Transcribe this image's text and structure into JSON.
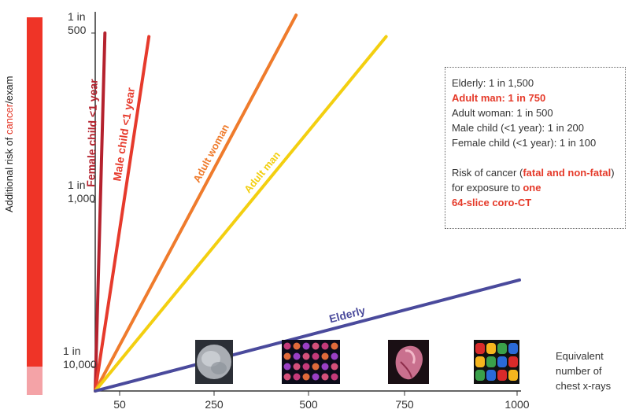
{
  "chart_data": {
    "type": "line",
    "ylabel_prefix": "Additional risk of ",
    "ylabel_highlight": "cancer",
    "ylabel_suffix": "/exam",
    "xlabel_lines": [
      "Equivalent",
      "number of",
      "chest x-rays"
    ],
    "x_ticks": [
      "50",
      "250",
      "500",
      "750",
      "1000"
    ],
    "y_ticks": [
      {
        "line1": "1 in",
        "line2": "500"
      },
      {
        "line1": "1 in",
        "line2": "1,000"
      },
      {
        "line1": "1 in",
        "line2": "10,000"
      }
    ],
    "series": [
      {
        "name": "Female child <1 year",
        "color": "#b5222e",
        "x": [
          0,
          28
        ],
        "y_rank": [
          0,
          1.0
        ]
      },
      {
        "name": "Male child <1 year",
        "color": "#e63a2c",
        "x": [
          0,
          155
        ],
        "y_rank": [
          0,
          0.99
        ]
      },
      {
        "name": "Adult woman",
        "color": "#ef7b2c",
        "x": [
          0,
          580
        ],
        "y_rank": [
          0,
          1.05
        ]
      },
      {
        "name": "Adult man",
        "color": "#f3cf10",
        "x": [
          0,
          840
        ],
        "y_rank": [
          0,
          0.99
        ]
      },
      {
        "name": "Elderly",
        "color": "#4a4a9c",
        "x": [
          0,
          1225
        ],
        "y_rank": [
          0,
          0.31
        ]
      }
    ],
    "risk_bar_colors": {
      "main": "#ef3427",
      "bottom": "#f4a3a7"
    }
  },
  "info_box": {
    "line_elderly": "Elderly: 1 in 1,500",
    "line_adult_man": "Adult man: 1 in 750",
    "line_adult_woman": "Adult woman: 1 in 500",
    "line_male_child": "Male child (<1 year): 1 in 200",
    "line_female_child": "Female child (<1 year): 1 in 100",
    "risk_prefix": "Risk of cancer (",
    "risk_highlight": "fatal and non-fatal",
    "risk_suffix": ")",
    "exposure_prefix": "for exposure to ",
    "exposure_highlight": "one",
    "exposure_ct": "64-slice coro-CT"
  },
  "thumbnails": [
    "chest-xray-thumbnail",
    "cardiac-perfusion-slices-thumbnail",
    "3d-heart-render-thumbnail",
    "perfusion-colormap-thumbnail"
  ]
}
